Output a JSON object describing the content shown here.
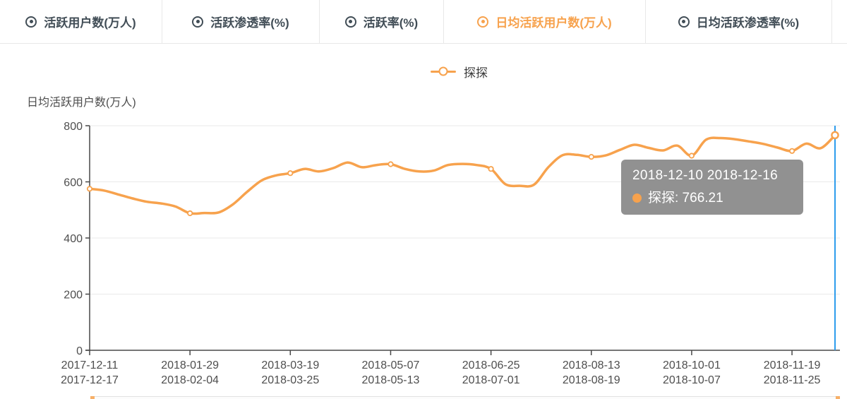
{
  "tabs": {
    "items": [
      {
        "label": "活跃用户数(万人)",
        "selected": false
      },
      {
        "label": "活跃渗透率(%)",
        "selected": false
      },
      {
        "label": "活跃率(%)",
        "selected": false
      },
      {
        "label": "日均活跃用户数(万人)",
        "selected": true
      },
      {
        "label": "日均活跃渗透率(%)",
        "selected": false
      }
    ]
  },
  "legend": {
    "label": "探探"
  },
  "chart_data": {
    "type": "line",
    "title": "",
    "ylabel": "日均活跃用户数(万人)",
    "xlabel": "",
    "ylim": [
      0,
      800
    ],
    "y_ticks": [
      0,
      200,
      400,
      600,
      800
    ],
    "num_points": 53,
    "smooth": true,
    "grid": "horizontal-only",
    "legend_position": "top-center",
    "x_tick_indices": [
      0,
      7,
      14,
      21,
      28,
      35,
      42,
      49
    ],
    "x_tick_labels": [
      [
        "2017-12-11",
        "2017-12-17"
      ],
      [
        "2018-01-29",
        "2018-02-04"
      ],
      [
        "2018-03-19",
        "2018-03-25"
      ],
      [
        "2018-05-07",
        "2018-05-13"
      ],
      [
        "2018-06-25",
        "2018-07-01"
      ],
      [
        "2018-08-13",
        "2018-08-19"
      ],
      [
        "2018-10-01",
        "2018-10-07"
      ],
      [
        "2018-11-19",
        "2018-11-25"
      ]
    ],
    "series": [
      {
        "name": "探探",
        "values": [
          575,
          569,
          555,
          541,
          529,
          523,
          512,
          488,
          489,
          491,
          520,
          565,
          605,
          623,
          631,
          646,
          637,
          649,
          669,
          652,
          660,
          663,
          646,
          637,
          640,
          660,
          664,
          660,
          646,
          592,
          586,
          590,
          652,
          695,
          696,
          689,
          694,
          714,
          732,
          721,
          712,
          729,
          693,
          750,
          756,
          752,
          744,
          735,
          722,
          710,
          736,
          720,
          766.21
        ]
      }
    ],
    "marker_indices": [
      0,
      7,
      14,
      21,
      28,
      35,
      42,
      49
    ],
    "hovered_index": 52,
    "hovered_value": 766.21
  },
  "tooltip": {
    "title": "2018-12-10 2018-12-16",
    "series_text": "探探: 766.21"
  },
  "colors": {
    "series_orange": "#F7A24D",
    "tab_text": "#414D56",
    "tab_selected": "#F7A24D",
    "axis_label": "#4E4E4E",
    "axis_line": "#484848",
    "gridline": "#E9E9E9",
    "pointer_blue": "#2D9CEC",
    "tooltip_bg": "#8C8C8C",
    "tooltip_text": "#FFFFFF"
  }
}
